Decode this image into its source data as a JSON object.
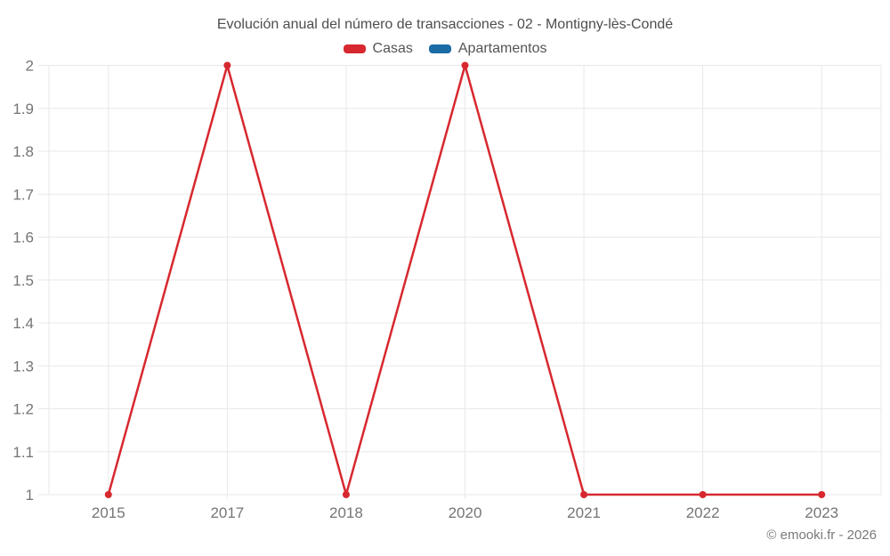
{
  "chart_data": {
    "type": "line",
    "title": "Evolución anual del número de transacciones - 02 - Montigny-lès-Condé",
    "categories": [
      "2015",
      "2017",
      "2018",
      "2020",
      "2021",
      "2022",
      "2023"
    ],
    "series": [
      {
        "name": "Casas",
        "color": "#d7282f",
        "values": [
          1,
          2,
          1,
          2,
          1,
          1,
          1
        ]
      },
      {
        "name": "Apartamentos",
        "color": "#1b6ca5",
        "values": []
      }
    ],
    "ylim": [
      1,
      2
    ],
    "yticks": [
      {
        "value": 1,
        "label": "1"
      },
      {
        "value": 1.1,
        "label": "1.1"
      },
      {
        "value": 1.2,
        "label": "1.2"
      },
      {
        "value": 1.3,
        "label": "1.3"
      },
      {
        "value": 1.4,
        "label": "1.4"
      },
      {
        "value": 1.5,
        "label": "1.5"
      },
      {
        "value": 1.6,
        "label": "1.6"
      },
      {
        "value": 1.7,
        "label": "1.7"
      },
      {
        "value": 1.8,
        "label": "1.8"
      },
      {
        "value": 1.9,
        "label": "1.9"
      },
      {
        "value": 2,
        "label": "2"
      }
    ],
    "xlabel": "",
    "ylabel": "",
    "legend_position": "top",
    "grid": true
  },
  "footer": {
    "copyright": "© emooki.fr - 2026"
  },
  "colors": {
    "grid": "#e8e8e8",
    "tick_text": "#757575",
    "title_text": "#4d4d4d",
    "legend_text": "#545454",
    "copyright_text": "#7a7a7a"
  }
}
